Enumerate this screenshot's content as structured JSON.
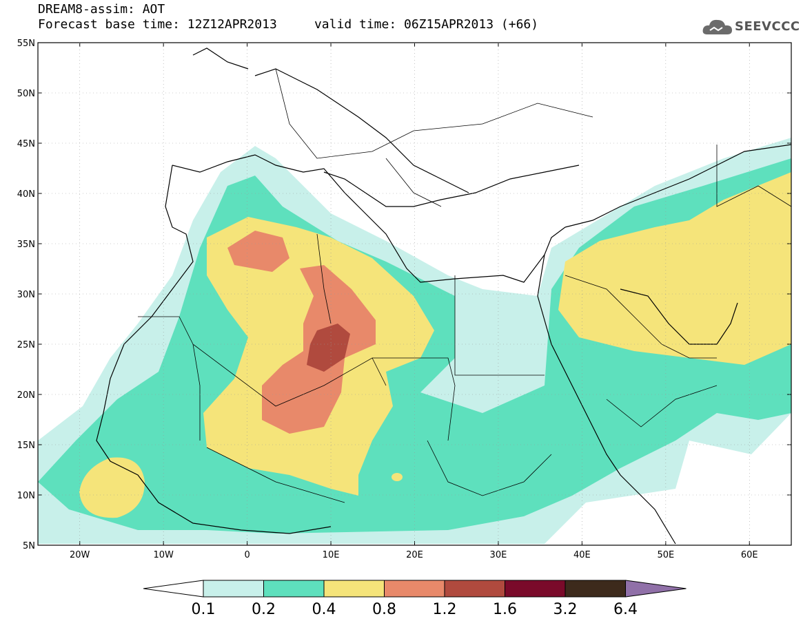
{
  "header": {
    "line1": "DREAM8-assim: AOT",
    "line2": "Forecast base time: 12Z12APR2013     valid time: 06Z15APR2013 (+66)"
  },
  "logo": {
    "text": "SEEVCCC",
    "icon": "cloud-icon"
  },
  "map": {
    "lat_labels": [
      "55N",
      "50N",
      "45N",
      "40N",
      "35N",
      "30N",
      "25N",
      "20N",
      "15N",
      "10N",
      "5N"
    ],
    "lon_labels": [
      "20W",
      "10W",
      "0",
      "10E",
      "20E",
      "30E",
      "40E",
      "50E",
      "60E"
    ],
    "extent": {
      "lon_min": -25,
      "lon_max": 65,
      "lat_min": 5,
      "lat_max": 55
    }
  },
  "colorbar": {
    "labels": [
      "0.1",
      "0.2",
      "0.4",
      "0.8",
      "1.2",
      "1.6",
      "3.2",
      "6.4"
    ],
    "colors": [
      "#ffffff",
      "#c8f0ea",
      "#5ee0bd",
      "#f5e47a",
      "#e8896a",
      "#b04a3e",
      "#7a0a2a",
      "#3d2a1c",
      "#9070a8"
    ]
  }
}
